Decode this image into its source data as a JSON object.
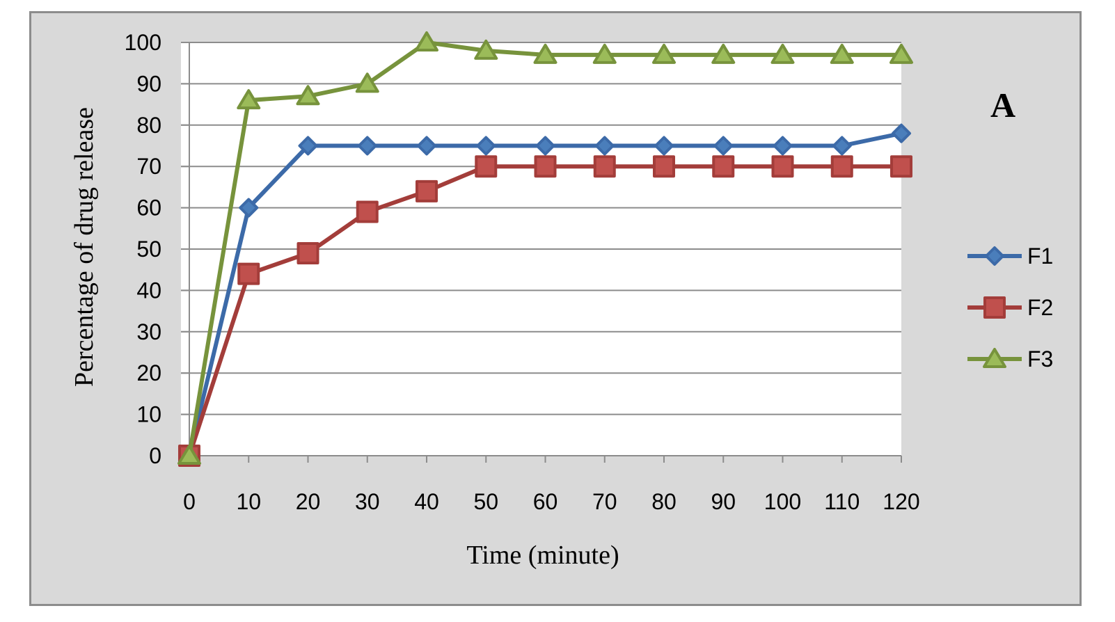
{
  "chart_data": {
    "type": "line",
    "panel_label": "A",
    "xlabel": "Time (minute)",
    "ylabel": "Percentage of drug release",
    "x": [
      0,
      10,
      20,
      30,
      40,
      50,
      60,
      70,
      80,
      90,
      100,
      110,
      120
    ],
    "ylim": [
      0,
      100
    ],
    "yticks": [
      0,
      10,
      20,
      30,
      40,
      50,
      60,
      70,
      80,
      90,
      100
    ],
    "grid": "horizontal",
    "legend_position": "right",
    "series": [
      {
        "name": "F1",
        "marker": "diamond",
        "color": "#3c6aa8",
        "fill": "#4a7ebb",
        "values": [
          0,
          60,
          75,
          75,
          75,
          75,
          75,
          75,
          75,
          75,
          75,
          75,
          78
        ]
      },
      {
        "name": "F2",
        "marker": "square",
        "color": "#a33d3a",
        "fill": "#c0504d",
        "values": [
          0,
          44,
          49,
          59,
          64,
          70,
          70,
          70,
          70,
          70,
          70,
          70,
          70
        ]
      },
      {
        "name": "F3",
        "marker": "triangle",
        "color": "#77933c",
        "fill": "#9bbb59",
        "values": [
          0,
          86,
          87,
          90,
          100,
          98,
          97,
          97,
          97,
          97,
          97,
          97,
          97
        ]
      }
    ]
  }
}
